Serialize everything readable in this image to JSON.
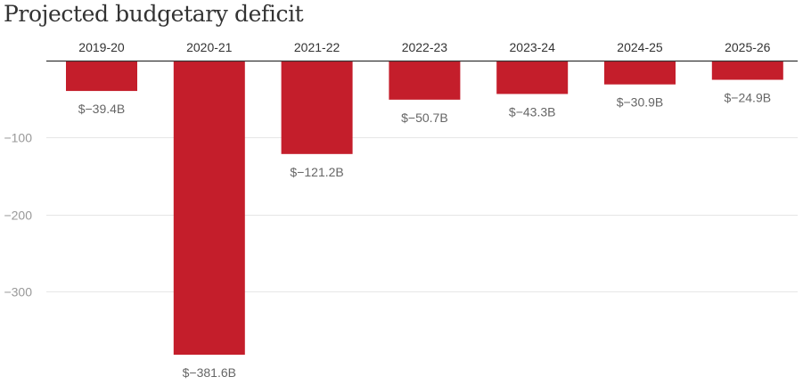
{
  "chart_data": {
    "type": "bar",
    "title": "Projected budgetary deficit",
    "categories": [
      "2019-20",
      "2020-21",
      "2021-22",
      "2022-23",
      "2023-24",
      "2024-25",
      "2025-26"
    ],
    "values": [
      -39.4,
      -381.6,
      -121.2,
      -50.7,
      -43.3,
      -30.9,
      -24.9
    ],
    "data_labels": [
      "$−39.4B",
      "$−381.6B",
      "$−121.2B",
      "$−50.7B",
      "$−43.3B",
      "$−30.9B",
      "$−24.9B"
    ],
    "y_ticks": [
      -100,
      -200,
      -300
    ],
    "y_tick_labels": [
      "−100",
      "−200",
      "−300"
    ],
    "ylim": [
      -381.6,
      0
    ],
    "category_axis_position": "top",
    "grid": true,
    "colors": {
      "bar": "#c41e2b",
      "grid": "#e6e6e6",
      "baseline": "#333333"
    }
  }
}
